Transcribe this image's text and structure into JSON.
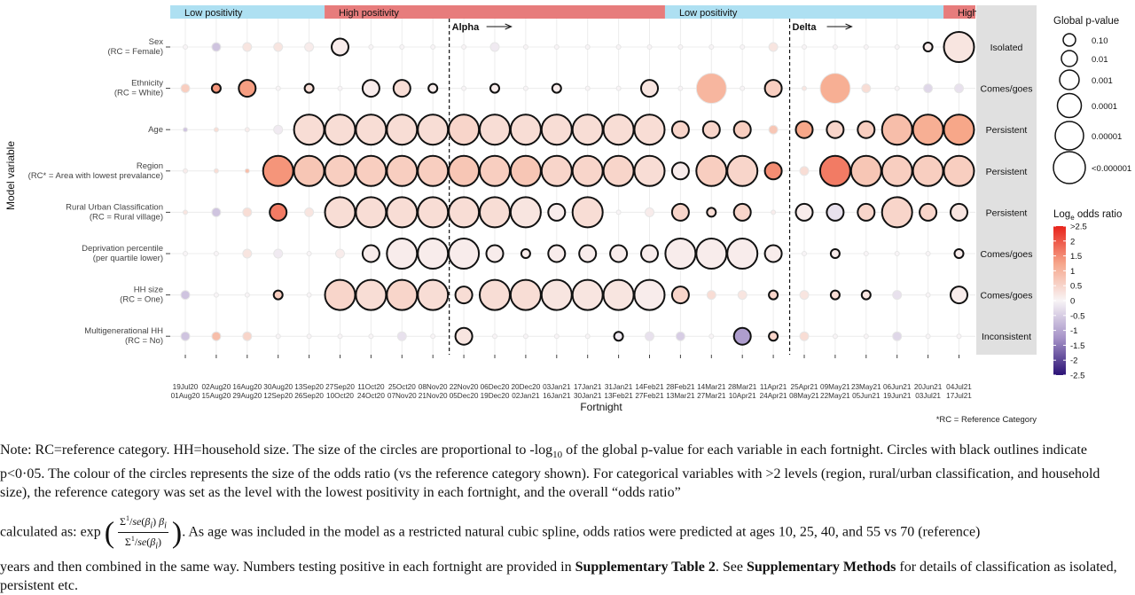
{
  "chart_data": {
    "type": "bubble",
    "ylabel": "Model variable",
    "xlabel": "Fortnight",
    "footnote": "*RC = Reference Category",
    "period_bands": [
      {
        "label": "Low positivity",
        "start": 0,
        "end": 4.5,
        "color": "#aee0f2"
      },
      {
        "label": "High positivity",
        "start": 4.5,
        "end": 15.5,
        "color": "#e77c7c"
      },
      {
        "label": "Low positivity",
        "start": 15.5,
        "end": 24.5,
        "color": "#aee0f2"
      },
      {
        "label": "High",
        "start": 24.5,
        "end": 25.5,
        "color": "#e77c7c"
      }
    ],
    "variant_markers": [
      {
        "label": "Alpha",
        "after_index": 8
      },
      {
        "label": "Delta",
        "after_index": 19
      }
    ],
    "x_top": [
      "19Jul20",
      "02Aug20",
      "16Aug20",
      "30Aug20",
      "13Sep20",
      "27Sep20",
      "11Oct20",
      "25Oct20",
      "08Nov20",
      "22Nov20",
      "06Dec20",
      "20Dec20",
      "03Jan21",
      "17Jan21",
      "31Jan21",
      "14Feb21",
      "28Feb21",
      "14Mar21",
      "28Mar21",
      "11Apr21",
      "25Apr21",
      "09May21",
      "23May21",
      "06Jun21",
      "20Jun21",
      "04Jul21"
    ],
    "x_bottom": [
      "01Aug20",
      "15Aug20",
      "29Aug20",
      "12Sep20",
      "26Sep20",
      "10Oct20",
      "24Oct20",
      "07Nov20",
      "21Nov20",
      "05Dec20",
      "19Dec20",
      "02Jan21",
      "16Jan21",
      "30Jan21",
      "13Feb21",
      "27Feb21",
      "13Mar21",
      "27Mar21",
      "10Apr21",
      "24Apr21",
      "08May21",
      "22May21",
      "05Jun21",
      "19Jun21",
      "03Jul21",
      "17Jul21"
    ],
    "variables": [
      {
        "name": "Sex",
        "rc": "(RC = Female)",
        "classification": "Isolated",
        "size": [
          0,
          1,
          0.5,
          1,
          0.5,
          2,
          0,
          0,
          0,
          0,
          0.5,
          0,
          0,
          0,
          0,
          0,
          0,
          0,
          0,
          1,
          0,
          0,
          0,
          0,
          1,
          3
        ],
        "log_or": [
          0,
          -0.5,
          0.2,
          0.2,
          0.1,
          0.1,
          0,
          0,
          0,
          0,
          -0.1,
          0,
          0,
          0,
          0,
          0,
          0,
          0,
          0,
          0.2,
          0,
          0,
          0,
          0,
          0.1,
          0.2
        ],
        "sig": [
          0,
          0,
          0,
          0,
          0,
          1,
          0,
          0,
          0,
          0,
          0,
          0,
          0,
          0,
          0,
          0,
          0,
          0,
          0,
          0,
          0,
          0,
          0,
          0,
          1,
          1
        ]
      },
      {
        "name": "Ethnicity",
        "rc": "(RC = White)",
        "classification": "Comes/goes",
        "size": [
          0.5,
          1,
          2,
          0,
          1,
          0,
          2,
          2,
          1,
          0,
          1,
          0,
          1,
          0,
          0,
          2,
          0,
          3,
          0,
          2,
          0,
          3,
          1,
          0,
          0.5,
          0.5
        ],
        "log_or": [
          0.5,
          1.2,
          1.1,
          0,
          0.3,
          0,
          0.1,
          0.3,
          0.1,
          0,
          0.1,
          0,
          0.1,
          0,
          0,
          0.2,
          0,
          0.8,
          0,
          0.5,
          0.2,
          0.9,
          0.3,
          0,
          -0.3,
          -0.2
        ],
        "sig": [
          0,
          1,
          1,
          0,
          1,
          0,
          1,
          1,
          1,
          0,
          1,
          0,
          1,
          0,
          0,
          1,
          0,
          0,
          0,
          1,
          0,
          0,
          0,
          0,
          0,
          0
        ]
      },
      {
        "name": "Age",
        "rc": "",
        "classification": "Persistent",
        "size": [
          0,
          0,
          0,
          1,
          3,
          3,
          3,
          3,
          3,
          3,
          3,
          3,
          3,
          3,
          3,
          3,
          2,
          2,
          2,
          1,
          2,
          2,
          2,
          3,
          3,
          3
        ],
        "log_or": [
          -0.5,
          0.3,
          0.1,
          -0.1,
          0.3,
          0.3,
          0.3,
          0.3,
          0.3,
          0.4,
          0.3,
          0.3,
          0.3,
          0.3,
          0.3,
          0.3,
          0.4,
          0.4,
          0.5,
          0.6,
          1.0,
          0.4,
          0.5,
          0.7,
          0.9,
          1.0
        ],
        "sig": [
          0,
          0,
          0,
          0,
          1,
          1,
          1,
          1,
          1,
          1,
          1,
          1,
          1,
          1,
          1,
          1,
          1,
          1,
          1,
          0,
          1,
          1,
          1,
          1,
          1,
          1
        ]
      },
      {
        "name": "Region",
        "rc": "(RC* = Area with lowest prevalance)",
        "classification": "Persistent",
        "size": [
          0,
          0,
          0,
          3,
          3,
          3,
          3,
          3,
          3,
          3,
          3,
          3,
          3,
          3,
          3,
          3,
          2,
          3,
          3,
          2,
          1,
          3,
          3,
          3,
          3,
          3
        ],
        "log_or": [
          0.1,
          0.3,
          0.7,
          1.2,
          0.6,
          0.5,
          0.5,
          0.5,
          0.5,
          0.6,
          0.5,
          0.6,
          0.4,
          0.4,
          0.4,
          0.3,
          0.1,
          0.5,
          0.4,
          1.3,
          0.3,
          1.5,
          0.6,
          0.5,
          0.5,
          0.5
        ],
        "sig": [
          0,
          0,
          0,
          1,
          1,
          1,
          1,
          1,
          1,
          1,
          1,
          1,
          1,
          1,
          1,
          1,
          1,
          1,
          1,
          1,
          0,
          1,
          1,
          1,
          1,
          1
        ]
      },
      {
        "name": "Rural Urban Classification",
        "rc": "(RC = Rural village)",
        "classification": "Persistent",
        "size": [
          0,
          1,
          0.5,
          2,
          0.5,
          3,
          3,
          3,
          3,
          3,
          3,
          3,
          2,
          3,
          0,
          0.5,
          2,
          1,
          2,
          0,
          2,
          2,
          2,
          3,
          2,
          2
        ],
        "log_or": [
          0.2,
          -0.5,
          0.3,
          1.5,
          0.2,
          0.3,
          0.3,
          0.3,
          0.3,
          0.3,
          0.3,
          0.2,
          0.1,
          0.3,
          0,
          0.1,
          0.4,
          0.3,
          0.4,
          0.1,
          0.1,
          -0.2,
          0.4,
          0.4,
          0.4,
          0.2
        ],
        "sig": [
          0,
          0,
          0,
          1,
          0,
          1,
          1,
          1,
          1,
          1,
          1,
          1,
          1,
          1,
          0,
          0,
          1,
          1,
          1,
          0,
          1,
          1,
          1,
          1,
          1,
          1
        ]
      },
      {
        "name": "Deprivation percentile",
        "rc": "(per quartile lower)",
        "classification": "Comes/goes",
        "size": [
          0,
          0,
          0.5,
          0.5,
          0,
          1,
          2,
          3,
          3,
          3,
          2,
          1,
          2,
          2,
          2,
          2,
          3,
          3,
          3,
          2,
          0,
          1,
          0,
          0,
          0,
          1
        ],
        "log_or": [
          0,
          0,
          0.2,
          -0.1,
          0,
          0.1,
          0.1,
          0.1,
          0.1,
          0.1,
          0.1,
          0.1,
          0.1,
          0.1,
          0.1,
          0.1,
          0.1,
          0.1,
          0.1,
          0.1,
          0,
          0.1,
          0,
          0,
          0,
          0.1
        ],
        "sig": [
          0,
          0,
          0,
          0,
          0,
          0,
          1,
          1,
          1,
          1,
          1,
          1,
          1,
          1,
          1,
          1,
          1,
          1,
          1,
          1,
          0,
          1,
          0,
          0,
          0,
          1
        ]
      },
      {
        "name": "HH size",
        "rc": "(RC = One)",
        "classification": "Comes/goes",
        "size": [
          1,
          0,
          0,
          1,
          0,
          3,
          3,
          3,
          3,
          2,
          3,
          3,
          3,
          3,
          3,
          3,
          2,
          1,
          0.5,
          1,
          0.5,
          1,
          1,
          0.5,
          0,
          2
        ],
        "log_or": [
          -0.5,
          0,
          0,
          0.5,
          0,
          0.4,
          0.3,
          0.4,
          0.3,
          0.3,
          0.3,
          0.3,
          0.2,
          0.2,
          0.2,
          0.1,
          0.4,
          0.3,
          0.2,
          0.4,
          0.2,
          0.3,
          0.2,
          -0.2,
          0,
          0.1
        ],
        "sig": [
          0,
          0,
          0,
          1,
          0,
          1,
          1,
          1,
          1,
          1,
          1,
          1,
          1,
          1,
          1,
          1,
          1,
          0,
          0,
          1,
          0,
          1,
          1,
          0,
          0,
          1
        ]
      },
      {
        "name": "Multigenerational HH",
        "rc": "(RC = No)",
        "classification": "Inconsistent",
        "size": [
          0.5,
          1,
          1,
          0,
          0,
          0,
          0,
          1,
          0,
          2,
          0,
          0,
          0,
          0,
          1,
          0.5,
          1,
          0,
          2,
          1,
          0.5,
          0,
          0,
          0.5,
          0,
          0
        ],
        "log_or": [
          -0.5,
          0.7,
          0.4,
          0,
          0,
          0,
          0,
          -0.2,
          0,
          0.2,
          0,
          0,
          0,
          0,
          -0.1,
          -0.2,
          -0.4,
          0,
          -0.9,
          0.4,
          0.3,
          0,
          0,
          -0.3,
          0,
          0
        ],
        "sig": [
          0,
          0,
          0,
          0,
          0,
          0,
          0,
          0,
          0,
          1,
          0,
          0,
          0,
          0,
          1,
          0,
          0,
          0,
          1,
          1,
          0,
          0,
          0,
          0,
          0,
          0
        ]
      }
    ],
    "size_legend": {
      "title": "Global p-value",
      "entries": [
        "0.10",
        "0.01",
        "0.001",
        "0.0001",
        "0.00001",
        "<0.000001"
      ]
    },
    "color_legend": {
      "title_main": "Log",
      "title_sub": "e",
      "title_rest": " odds ratio",
      "ticks": [
        ">2.5",
        "2",
        "1.5",
        "1",
        "0.5",
        "0",
        "-0.5",
        "-1",
        "-1.5",
        "-2",
        "-2.5"
      ],
      "range": [
        -2.5,
        2.5
      ]
    }
  },
  "note": {
    "p1_a": "Note: RC=reference category. HH=household size. The size of the circles are proportional to -log",
    "p1_sub": "10",
    "p1_b": " of the global p-value for each variable in each fortnight. Circles with black outlines indicate p<0·05. The colour of the circles represents the size of the odds ratio (vs the reference category shown). For categorical variables with >2 levels (region, rural/urban classification, and household size), the reference category was set as the level with the lowest positivity in each fortnight, and the overall “odds ratio”",
    "p2_a": "calculated as: exp",
    "p2_b": ". As age was included in the model as a restricted natural cubic spline, odds ratios were predicted at ages 10, 25, 40, and 55 vs 70 (reference)",
    "p3_a": "years and then combined in the same way. Numbers testing positive in each fortnight are provided in ",
    "p3_bold1": "Supplementary Table 2",
    "p3_b": ". See ",
    "p3_bold2": "Supplementary Methods",
    "p3_c": " for details of classification as isolated, persistent etc."
  }
}
